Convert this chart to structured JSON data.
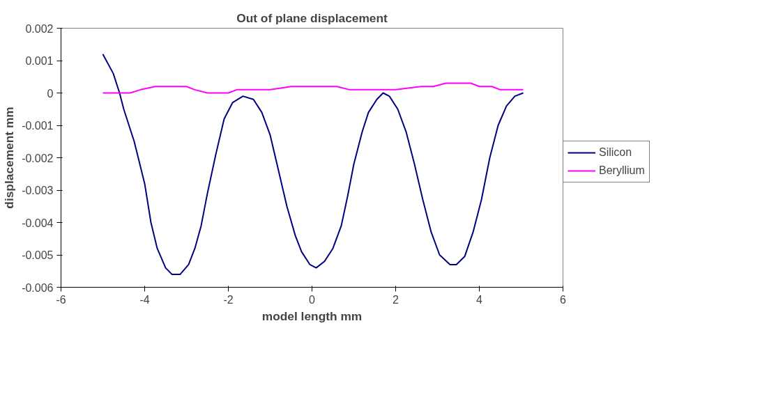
{
  "chart_data": {
    "type": "line",
    "title": "Out of plane displacement",
    "xlabel": "model length mm",
    "ylabel": "displacement mm",
    "xlim": [
      -6,
      6
    ],
    "xticks": [
      -6,
      -4,
      -2,
      0,
      2,
      4,
      6
    ],
    "ylim": [
      -0.006,
      0.002
    ],
    "yticks": [
      -0.006,
      -0.005,
      -0.004,
      -0.003,
      -0.002,
      -0.001,
      0,
      0.001,
      0.002
    ],
    "grid": false,
    "legend": "right",
    "marker": "none",
    "line_style": "solid",
    "series": [
      {
        "name": "Silicon",
        "color": "#000080",
        "x": [
          -5.0,
          -4.75,
          -4.6,
          -4.5,
          -4.25,
          -4.0,
          -3.85,
          -3.7,
          -3.5,
          -3.35,
          -3.15,
          -2.95,
          -2.8,
          -2.65,
          -2.5,
          -2.3,
          -2.1,
          -1.9,
          -1.65,
          -1.4,
          -1.2,
          -1.0,
          -0.8,
          -0.6,
          -0.4,
          -0.25,
          -0.05,
          0.1,
          0.3,
          0.5,
          0.7,
          0.85,
          1.0,
          1.2,
          1.35,
          1.55,
          1.7,
          1.85,
          2.05,
          2.25,
          2.45,
          2.65,
          2.85,
          3.05,
          3.3,
          3.45,
          3.65,
          3.85,
          4.05,
          4.25,
          4.45,
          4.65,
          4.85,
          5.05
        ],
        "values": [
          0.0012,
          0.0006,
          0.0,
          -0.0005,
          -0.0015,
          -0.0028,
          -0.004,
          -0.0048,
          -0.0054,
          -0.0056,
          -0.0056,
          -0.0053,
          -0.0048,
          -0.0041,
          -0.0031,
          -0.0019,
          -0.0008,
          -0.0003,
          -0.0001,
          -0.0002,
          -0.0006,
          -0.0013,
          -0.0024,
          -0.0035,
          -0.0044,
          -0.0049,
          -0.0053,
          -0.0054,
          -0.0052,
          -0.0048,
          -0.0041,
          -0.0032,
          -0.0022,
          -0.0012,
          -0.0006,
          -0.0002,
          0.0,
          -0.0001,
          -0.0005,
          -0.0012,
          -0.0022,
          -0.0033,
          -0.0043,
          -0.005,
          -0.0053,
          -0.0053,
          -0.00505,
          -0.0043,
          -0.0033,
          -0.002,
          -0.001,
          -0.0004,
          -0.0001,
          0.0
        ]
      },
      {
        "name": "Beryllium",
        "color": "#ff00ff",
        "x": [
          -5.0,
          -4.35,
          -4.1,
          -3.75,
          -3.0,
          -2.8,
          -2.5,
          -2.0,
          -1.8,
          -1.0,
          -0.5,
          -0.2,
          0.6,
          0.9,
          1.2,
          1.7,
          2.0,
          2.6,
          2.9,
          3.2,
          3.8,
          4.0,
          4.3,
          4.5,
          5.05
        ],
        "values": [
          0.0,
          0.0,
          0.0001,
          0.0002,
          0.0002,
          0.0001,
          0.0,
          0.0,
          0.0001,
          0.0001,
          0.0002,
          0.0002,
          0.0002,
          0.0001,
          0.0001,
          0.0001,
          0.0001,
          0.0002,
          0.0002,
          0.0003,
          0.0003,
          0.0002,
          0.0002,
          0.0001,
          0.0001
        ]
      }
    ]
  }
}
